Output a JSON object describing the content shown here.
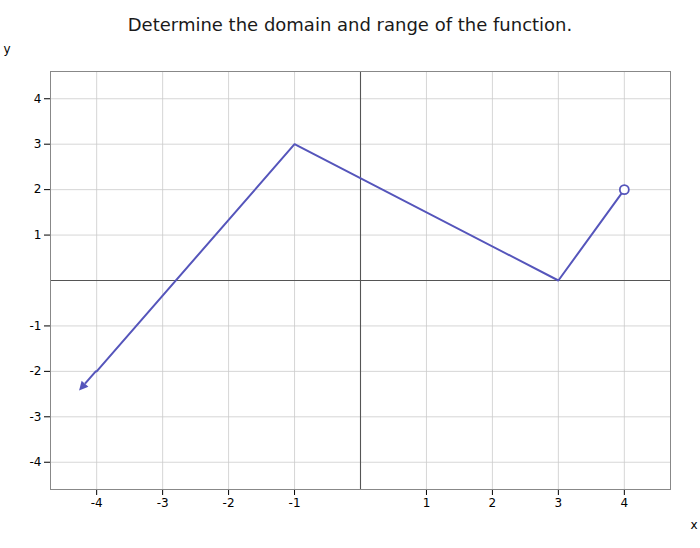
{
  "chart_data": {
    "type": "line",
    "title": "Determine the domain and range of the function.",
    "x": [
      -4,
      -1,
      3,
      4
    ],
    "values": [
      -2,
      3,
      0,
      2
    ],
    "color": "#5555bb",
    "open_circle": {
      "x": 4,
      "y": 2
    },
    "arrow_end": {
      "x": -4,
      "y": -2
    },
    "xlim": [
      -4.7,
      4.7
    ],
    "ylim": [
      -4.6,
      4.6
    ],
    "xticks": [
      -4,
      -3,
      -2,
      -1,
      1,
      2,
      3,
      4
    ],
    "yticks": [
      -4,
      -3,
      -2,
      -1,
      1,
      2,
      3,
      4
    ],
    "xlabel": "x",
    "ylabel": "y",
    "grid": true
  }
}
